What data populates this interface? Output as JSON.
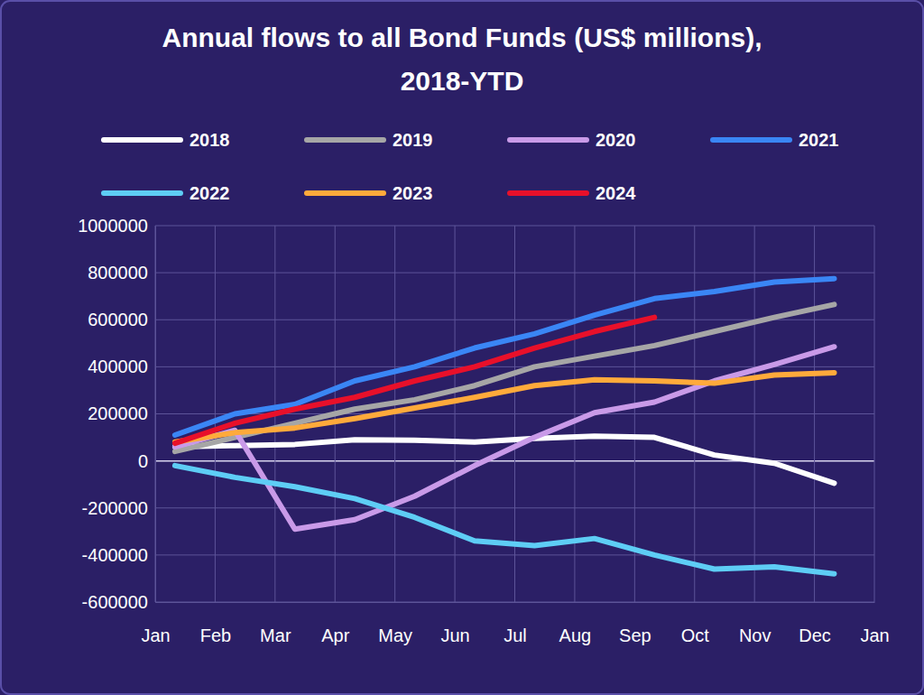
{
  "chart_data": {
    "type": "line",
    "title": "Annual flows to all Bond Funds (US$ millions), 2018-YTD",
    "x": [
      0.33,
      1.33,
      2.33,
      3.33,
      4.33,
      5.33,
      6.33,
      7.33,
      8.33,
      9.33,
      10.33,
      11.33
    ],
    "xlim": [
      0,
      12
    ],
    "xticks": [
      {
        "value": 0,
        "label": "Jan"
      },
      {
        "value": 1,
        "label": "Feb"
      },
      {
        "value": 2,
        "label": "Mar"
      },
      {
        "value": 3,
        "label": "Apr"
      },
      {
        "value": 4,
        "label": "May"
      },
      {
        "value": 5,
        "label": "Jun"
      },
      {
        "value": 6,
        "label": "Jul"
      },
      {
        "value": 7,
        "label": "Aug"
      },
      {
        "value": 8,
        "label": "Sep"
      },
      {
        "value": 9,
        "label": "Oct"
      },
      {
        "value": 10,
        "label": "Nov"
      },
      {
        "value": 11,
        "label": "Dec"
      },
      {
        "value": 12,
        "label": "Jan"
      }
    ],
    "ylim": [
      -600000,
      1000000
    ],
    "yticks": [
      -600000,
      -400000,
      -200000,
      0,
      200000,
      400000,
      600000,
      800000,
      1000000
    ],
    "grid": true,
    "legend": "top",
    "series": [
      {
        "name": "2018",
        "color": "#ffffff",
        "values": [
          60000,
          65000,
          70000,
          90000,
          88000,
          80000,
          95000,
          105000,
          100000,
          25000,
          -10000,
          -95000
        ]
      },
      {
        "name": "2019",
        "color": "#a6a6a6",
        "values": [
          40000,
          100000,
          160000,
          220000,
          260000,
          320000,
          400000,
          445000,
          490000,
          550000,
          610000,
          665000
        ]
      },
      {
        "name": "2020",
        "color": "#c99ae8",
        "values": [
          60000,
          130000,
          -290000,
          -250000,
          -150000,
          -20000,
          100000,
          205000,
          250000,
          340000,
          410000,
          485000
        ]
      },
      {
        "name": "2021",
        "color": "#3a86f5",
        "values": [
          110000,
          200000,
          240000,
          340000,
          400000,
          480000,
          540000,
          620000,
          690000,
          720000,
          760000,
          775000
        ]
      },
      {
        "name": "2022",
        "color": "#5ecdf5",
        "values": [
          -20000,
          -70000,
          -110000,
          -160000,
          -240000,
          -340000,
          -360000,
          -330000,
          -400000,
          -460000,
          -450000,
          -480000
        ]
      },
      {
        "name": "2023",
        "color": "#ffaa3b",
        "values": [
          80000,
          120000,
          140000,
          180000,
          225000,
          270000,
          320000,
          345000,
          340000,
          330000,
          365000,
          375000
        ]
      },
      {
        "name": "2024",
        "color": "#e8102a",
        "values": [
          75000,
          160000,
          220000,
          270000,
          340000,
          400000,
          480000,
          550000,
          610000,
          null,
          null,
          null
        ]
      }
    ]
  }
}
